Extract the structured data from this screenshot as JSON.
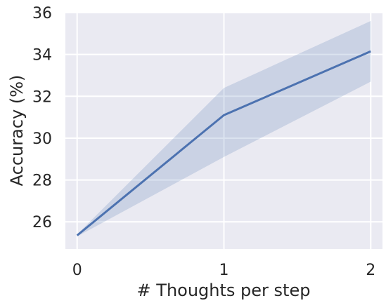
{
  "chart_data": {
    "type": "line",
    "title": "",
    "xlabel": "# Thoughts per step",
    "ylabel": "Accuracy (%)",
    "x": [
      0,
      1,
      2
    ],
    "xticks": [
      "0",
      "1",
      "2"
    ],
    "xlim": [
      -0.08,
      2.08
    ],
    "ylim": [
      24.7,
      36.0
    ],
    "yticks": [
      "26",
      "28",
      "30",
      "32",
      "34",
      "36"
    ],
    "grid": true,
    "series": [
      {
        "values": [
          25.35,
          31.1,
          34.15
        ],
        "ci_low": [
          25.3,
          29.1,
          32.7
        ],
        "ci_high": [
          25.4,
          32.4,
          35.6
        ]
      }
    ],
    "colors": {
      "background": "#eaeaf2",
      "grid": "#ffffff",
      "line": "#4c72b0",
      "band": "#4c72b0"
    }
  }
}
